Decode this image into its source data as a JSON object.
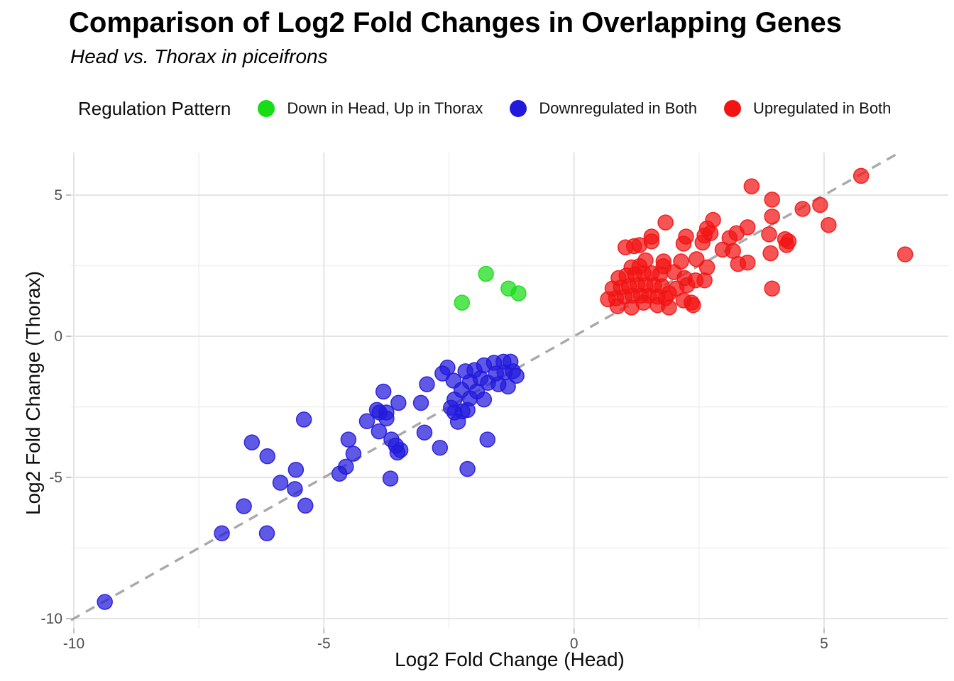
{
  "title": "Comparison of Log2 Fold Changes in Overlapping Genes",
  "subtitle": "Head vs. Thorax in piceifrons",
  "legend": {
    "title": "Regulation Pattern",
    "items": [
      {
        "label": "Down in Head, Up in Thorax",
        "color": "#17DD17"
      },
      {
        "label": "Downregulated in Both",
        "color": "#2119DC"
      },
      {
        "label": "Upregulated in Both",
        "color": "#F21414"
      }
    ]
  },
  "colors": {
    "green": "#17DD17",
    "blue": "#2119DC",
    "red": "#F21414",
    "reference_line": "#A9A9A9",
    "gridline_major": "#E4E4E4",
    "gridline_minor": "#EFEFEF",
    "tick": "#BFBFBF",
    "tick_text": "#4d4d4d"
  },
  "chart_data": {
    "type": "scatter",
    "title": "Comparison of Log2 Fold Changes in Overlapping Genes",
    "subtitle": "Head vs. Thorax in piceifrons",
    "xlabel": "Log2 Fold Change (Head)",
    "ylabel": "Log2 Fold Change (Thorax)",
    "xlim": [
      -10.06,
      7.48
    ],
    "ylim": [
      -10.35,
      6.51
    ],
    "x_ticks": [
      -10,
      -5,
      0,
      5
    ],
    "y_ticks": [
      5,
      0,
      -5,
      -10
    ],
    "x_minor_ticks": [
      -7.5,
      -2.5,
      2.5
    ],
    "y_minor_ticks": [
      2.5,
      -2.5,
      -7.5
    ],
    "grid": true,
    "legend_position": "top",
    "reference_line": {
      "kind": "identity",
      "equation": "y = x",
      "style": "dashed"
    },
    "point_opacity": 0.72,
    "series": [
      {
        "name": "Down in Head, Up in Thorax",
        "color": "#17DD17",
        "points": [
          [
            -2.24,
            1.19
          ],
          [
            -1.76,
            2.21
          ],
          [
            -1.31,
            1.69
          ],
          [
            -1.11,
            1.52
          ]
        ]
      },
      {
        "name": "Downregulated in Both",
        "color": "#2119DC",
        "points": [
          [
            -9.38,
            -9.41
          ],
          [
            -7.04,
            -6.98
          ],
          [
            -6.6,
            -6.02
          ],
          [
            -6.14,
            -6.98
          ],
          [
            -6.44,
            -3.76
          ],
          [
            -6.13,
            -4.25
          ],
          [
            -5.87,
            -5.19
          ],
          [
            -5.58,
            -5.41
          ],
          [
            -5.56,
            -4.73
          ],
          [
            -5.37,
            -6.0
          ],
          [
            -5.4,
            -2.95
          ],
          [
            -4.69,
            -4.87
          ],
          [
            -4.56,
            -4.62
          ],
          [
            -4.41,
            -4.16
          ],
          [
            -4.51,
            -3.66
          ],
          [
            -4.14,
            -3.01
          ],
          [
            -3.9,
            -3.37
          ],
          [
            -3.94,
            -2.61
          ],
          [
            -3.81,
            -1.96
          ],
          [
            -3.89,
            -2.7
          ],
          [
            -3.75,
            -2.7
          ],
          [
            -3.75,
            -2.91
          ],
          [
            -3.65,
            -3.66
          ],
          [
            -3.53,
            -4.12
          ],
          [
            -3.67,
            -5.04
          ],
          [
            -3.56,
            -3.87
          ],
          [
            -3.47,
            -4.03
          ],
          [
            -2.99,
            -3.41
          ],
          [
            -2.68,
            -3.95
          ],
          [
            -2.13,
            -4.7
          ],
          [
            -1.73,
            -3.66
          ],
          [
            -2.23,
            -2.66
          ],
          [
            -2.32,
            -3.03
          ],
          [
            -3.51,
            -2.36
          ],
          [
            -3.06,
            -2.36
          ],
          [
            -2.46,
            -2.53
          ],
          [
            -2.39,
            -2.24
          ],
          [
            -2.08,
            -2.2
          ],
          [
            -1.8,
            -2.24
          ],
          [
            -2.13,
            -2.61
          ],
          [
            -2.39,
            -2.7
          ],
          [
            -2.53,
            -1.11
          ],
          [
            -2.63,
            -1.32
          ],
          [
            -2.94,
            -1.7
          ],
          [
            -2.41,
            -1.57
          ],
          [
            -2.17,
            -1.24
          ],
          [
            -1.99,
            -1.2
          ],
          [
            -1.8,
            -1.03
          ],
          [
            -1.6,
            -0.94
          ],
          [
            -1.41,
            -0.9
          ],
          [
            -1.27,
            -0.9
          ],
          [
            -1.56,
            -1.32
          ],
          [
            -1.39,
            -1.28
          ],
          [
            -1.22,
            -1.24
          ],
          [
            -1.15,
            -1.4
          ],
          [
            -1.87,
            -1.49
          ],
          [
            -2.08,
            -1.61
          ],
          [
            -1.72,
            -1.65
          ],
          [
            -1.51,
            -1.7
          ],
          [
            -1.32,
            -1.78
          ],
          [
            -2.25,
            -1.9
          ],
          [
            -1.94,
            -1.95
          ]
        ]
      },
      {
        "name": "Upregulated in Both",
        "color": "#F21414",
        "points": [
          [
            0.68,
            1.31
          ],
          [
            0.77,
            1.69
          ],
          [
            0.84,
            1.35
          ],
          [
            0.87,
            1.06
          ],
          [
            0.89,
            2.06
          ],
          [
            0.94,
            1.73
          ],
          [
            1.01,
            1.4
          ],
          [
            1.03,
            3.15
          ],
          [
            1.05,
            2.15
          ],
          [
            1.1,
            1.77
          ],
          [
            1.15,
            1.02
          ],
          [
            1.15,
            2.44
          ],
          [
            1.17,
            1.44
          ],
          [
            1.2,
            3.19
          ],
          [
            1.22,
            2.19
          ],
          [
            1.27,
            1.81
          ],
          [
            1.31,
            3.23
          ],
          [
            1.31,
            2.48
          ],
          [
            1.34,
            1.44
          ],
          [
            1.39,
            2.23
          ],
          [
            1.39,
            1.19
          ],
          [
            1.43,
            2.69
          ],
          [
            1.43,
            1.81
          ],
          [
            1.5,
            1.44
          ],
          [
            1.55,
            3.36
          ],
          [
            1.55,
            3.53
          ],
          [
            1.55,
            2.23
          ],
          [
            1.6,
            1.81
          ],
          [
            1.67,
            1.4
          ],
          [
            1.67,
            1.1
          ],
          [
            1.72,
            2.19
          ],
          [
            1.76,
            1.77
          ],
          [
            1.79,
            2.65
          ],
          [
            1.79,
            2.48
          ],
          [
            1.83,
            4.03
          ],
          [
            1.83,
            1.35
          ],
          [
            1.9,
            1.52
          ],
          [
            1.9,
            1.02
          ],
          [
            2.0,
            2.27
          ],
          [
            2.05,
            1.69
          ],
          [
            2.14,
            2.65
          ],
          [
            2.19,
            3.28
          ],
          [
            2.19,
            1.27
          ],
          [
            2.21,
            2.06
          ],
          [
            2.24,
            3.53
          ],
          [
            2.26,
            1.81
          ],
          [
            2.35,
            1.19
          ],
          [
            2.38,
            1.1
          ],
          [
            2.43,
            1.98
          ],
          [
            2.45,
            2.73
          ],
          [
            2.57,
            3.32
          ],
          [
            2.61,
            3.57
          ],
          [
            2.61,
            1.98
          ],
          [
            2.66,
            3.82
          ],
          [
            2.66,
            2.44
          ],
          [
            2.73,
            3.65
          ],
          [
            2.78,
            4.12
          ],
          [
            2.97,
            3.07
          ],
          [
            3.11,
            3.48
          ],
          [
            3.18,
            3.02
          ],
          [
            3.25,
            3.65
          ],
          [
            3.28,
            2.56
          ],
          [
            3.47,
            2.61
          ],
          [
            3.47,
            3.86
          ],
          [
            3.55,
            5.31
          ],
          [
            3.9,
            3.61
          ],
          [
            3.93,
            2.94
          ],
          [
            3.96,
            4.84
          ],
          [
            3.96,
            4.24
          ],
          [
            3.96,
            1.69
          ],
          [
            4.22,
            3.44
          ],
          [
            4.29,
            3.36
          ],
          [
            4.25,
            3.23
          ],
          [
            4.57,
            4.51
          ],
          [
            4.92,
            4.65
          ],
          [
            5.09,
            3.94
          ],
          [
            5.74,
            5.68
          ],
          [
            6.62,
            2.9
          ]
        ]
      }
    ]
  }
}
